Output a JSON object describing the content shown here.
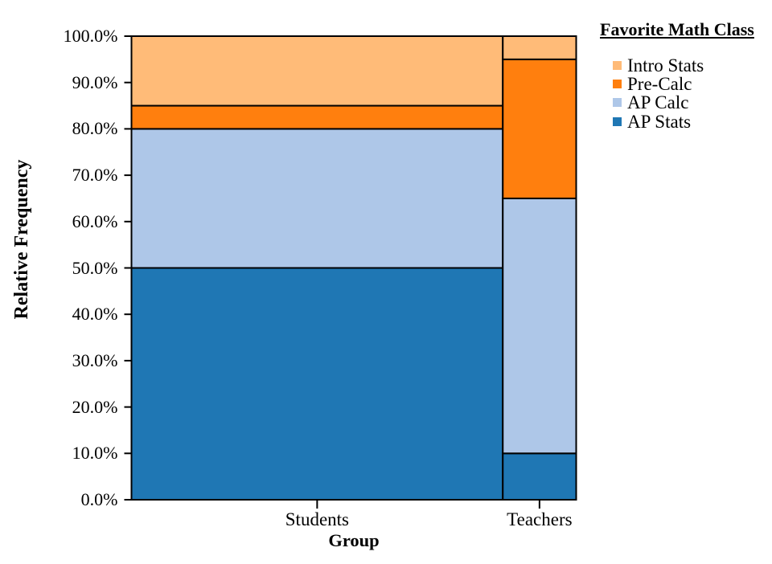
{
  "chart": {
    "y_axis": {
      "title": "Relative Frequency",
      "min": 0,
      "max": 100,
      "step": 10,
      "tick_label_format": "one_decimal_percent"
    },
    "x_axis": {
      "title": "Group",
      "categories": [
        "Students",
        "Teachers"
      ]
    },
    "legend": {
      "title": "Favorite Math Class",
      "items": [
        {
          "label": "Intro Stats",
          "color": "#ffbb78"
        },
        {
          "label": "Pre-Calc",
          "color": "#ff7f0e"
        },
        {
          "label": "AP Calc",
          "color": "#aec7e8"
        },
        {
          "label": "AP Stats",
          "color": "#1f77b4"
        }
      ]
    }
  },
  "chart_data": {
    "type": "bar",
    "variant": "mosaic-segmented-relative-frequency",
    "title": "",
    "xlabel": "Group",
    "ylabel": "Relative Frequency",
    "categories": [
      "Students",
      "Teachers"
    ],
    "category_width_fractions": [
      0.835,
      0.165
    ],
    "series": [
      {
        "name": "Intro Stats",
        "color": "#ffbb78",
        "values": [
          15,
          5
        ]
      },
      {
        "name": "Pre-Calc",
        "color": "#ff7f0e",
        "values": [
          5,
          30
        ]
      },
      {
        "name": "AP Calc",
        "color": "#aec7e8",
        "values": [
          30,
          55
        ]
      },
      {
        "name": "AP Stats",
        "color": "#1f77b4",
        "values": [
          50,
          10
        ]
      }
    ],
    "stack_order_bottom_to_top": [
      "AP Stats",
      "AP Calc",
      "Pre-Calc",
      "Intro Stats"
    ],
    "ylim": [
      0,
      100
    ],
    "y_ticks": [
      0,
      10,
      20,
      30,
      40,
      50,
      60,
      70,
      80,
      90,
      100
    ],
    "y_tick_labels": [
      "0.0%",
      "10.0%",
      "20.0%",
      "30.0%",
      "40.0%",
      "50.0%",
      "60.0%",
      "70.0%",
      "80.0%",
      "90.0%",
      "100.0%"
    ],
    "grid": false,
    "bar_edge_color": "#000000",
    "legend_position": "right-top",
    "legend_title": "Favorite Math Class"
  }
}
